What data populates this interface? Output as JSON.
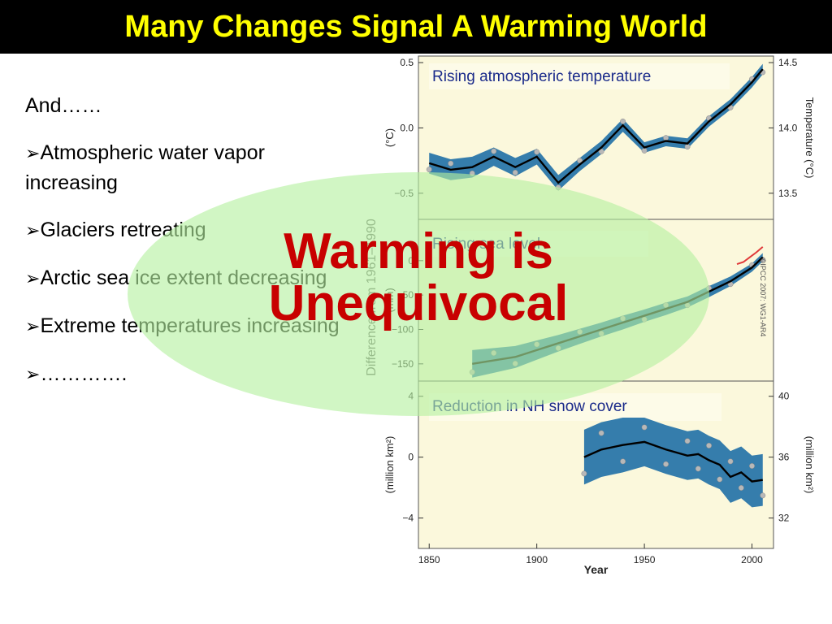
{
  "slide": {
    "title": "Many Changes Signal A Warming World",
    "intro": "And……",
    "bullets": [
      {
        "marker": "➢",
        "text": "Atmospheric water vapor increasing"
      },
      {
        "marker": "➢",
        "text": "Glaciers retreating"
      },
      {
        "marker": "➢",
        "text": "Arctic sea ice extent decreasing"
      },
      {
        "marker": "➢",
        "text": "Extreme temperatures increasing"
      },
      {
        "marker": "➢",
        "text": "…………."
      }
    ],
    "overlay": {
      "line1": "Warming is",
      "line2": "Unequivocal",
      "fill": "#b4f0a0",
      "color": "#c80000"
    },
    "shared_xlabel": "Year",
    "shared_ylabel": "Difference from 1961–1990",
    "copyright": "©IPCC 2007: WG1-AR4",
    "colors": {
      "title_bg": "#000000",
      "title_fg": "#ffff00",
      "panel_bg": "#fbf8dc",
      "band": "#1f6fa6",
      "line": "#000000",
      "points": "#b8b8b8",
      "recent": "#e03a3a"
    }
  },
  "chart_data": [
    {
      "type": "line",
      "title": "Rising atmospheric temperature",
      "xlim": [
        1845,
        2010
      ],
      "ylim": [
        -0.7,
        0.55
      ],
      "yticks": [
        0.5,
        0.0,
        -0.5
      ],
      "ytick_labels": [
        "0.5",
        "0.0",
        "−0.5"
      ],
      "ylabel": "(°C)",
      "right_ticks": [
        14.5,
        14.0,
        13.5
      ],
      "right_tick_labels": [
        "14.5",
        "14.0",
        "13.5"
      ],
      "right_offset": 14.0,
      "right_label": "Temperature (°C)",
      "series": [
        {
          "x": [
            1850,
            1860,
            1870,
            1880,
            1890,
            1900,
            1910,
            1920,
            1930,
            1940,
            1950,
            1960,
            1970,
            1980,
            1990,
            2000,
            2005
          ],
          "y": [
            -0.27,
            -0.32,
            -0.3,
            -0.22,
            -0.3,
            -0.22,
            -0.42,
            -0.28,
            -0.15,
            0.02,
            -0.15,
            -0.1,
            -0.12,
            0.05,
            0.18,
            0.35,
            0.45
          ],
          "band": [
            0.08,
            0.08,
            0.08,
            0.07,
            0.07,
            0.06,
            0.06,
            0.05,
            0.05,
            0.05,
            0.04,
            0.04,
            0.04,
            0.04,
            0.04,
            0.04,
            0.04
          ]
        }
      ]
    },
    {
      "type": "line",
      "title": "Rising sea level",
      "xlim": [
        1845,
        2010
      ],
      "ylim": [
        -175,
        60
      ],
      "yticks": [
        0,
        -50,
        -100,
        -150
      ],
      "ytick_labels": [
        "0",
        "−50",
        "−100",
        "−150"
      ],
      "ylabel": "(mm)",
      "series": [
        {
          "x": [
            1870,
            1880,
            1890,
            1900,
            1910,
            1920,
            1930,
            1940,
            1950,
            1960,
            1970,
            1980,
            1990,
            2000,
            2005
          ],
          "y": [
            -150,
            -145,
            -140,
            -130,
            -120,
            -110,
            -100,
            -90,
            -80,
            -70,
            -60,
            -45,
            -30,
            -10,
            5
          ],
          "band": [
            20,
            18,
            16,
            14,
            12,
            11,
            10,
            10,
            9,
            9,
            8,
            8,
            7,
            6,
            6
          ]
        },
        {
          "name": "satellite",
          "x": [
            1993,
            1996,
            1999,
            2002,
            2005
          ],
          "y": [
            -5,
            -2,
            5,
            12,
            20
          ]
        }
      ]
    },
    {
      "type": "line",
      "title": "Reduction in NH snow cover",
      "xlim": [
        1845,
        2010
      ],
      "ylim": [
        -6,
        5
      ],
      "yticks": [
        4,
        0,
        -4
      ],
      "ytick_labels": [
        "4",
        "0",
        "−4"
      ],
      "ylabel": "(million km²)",
      "right_ticks": [
        40,
        36,
        32
      ],
      "right_tick_labels": [
        "40",
        "36",
        "32"
      ],
      "right_offset": 36.0,
      "right_label": "(million km²)",
      "xticks": [
        1850,
        1900,
        1950,
        2000
      ],
      "series": [
        {
          "x": [
            1922,
            1930,
            1940,
            1950,
            1960,
            1970,
            1975,
            1980,
            1985,
            1990,
            1995,
            2000,
            2005
          ],
          "y": [
            0.0,
            0.5,
            0.8,
            1.0,
            0.5,
            0.1,
            0.2,
            -0.2,
            -0.5,
            -1.3,
            -1.0,
            -1.6,
            -1.5
          ],
          "band": [
            1.8,
            1.8,
            1.8,
            1.6,
            1.6,
            1.6,
            1.6,
            1.6,
            1.6,
            1.7,
            1.7,
            1.7,
            1.7
          ]
        }
      ]
    }
  ]
}
